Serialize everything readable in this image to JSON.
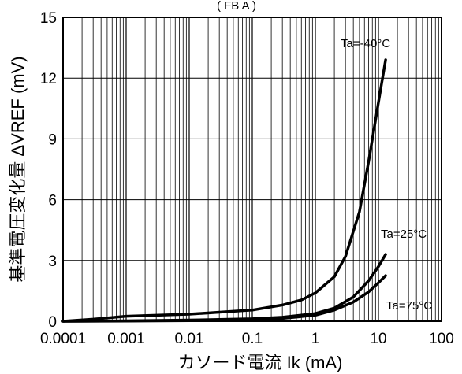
{
  "chart_data": {
    "type": "line",
    "title": "",
    "top_fragment": "( FB A )",
    "xlabel": "カソード電流 Ik (mA)",
    "ylabel": "基準電圧変化量 ΔVREF (mV)",
    "x_scale": "log",
    "xlim": [
      0.0001,
      100
    ],
    "ylim": [
      0,
      15
    ],
    "x_ticks": [
      0.0001,
      0.001,
      0.01,
      0.1,
      1,
      10,
      100
    ],
    "x_tick_labels": [
      "0.0001",
      "0.001",
      "0.01",
      "0.1",
      "1",
      "10",
      "100"
    ],
    "y_ticks": [
      0,
      3,
      6,
      9,
      12,
      15
    ],
    "y_tick_labels": [
      "0",
      "3",
      "6",
      "9",
      "12",
      "15"
    ],
    "grid": true,
    "series": [
      {
        "name": "Ta=-40°C",
        "points": [
          [
            0.0001,
            0
          ],
          [
            0.0003,
            0.1
          ],
          [
            0.001,
            0.25
          ],
          [
            0.01,
            0.35
          ],
          [
            0.1,
            0.55
          ],
          [
            0.3,
            0.8
          ],
          [
            0.6,
            1.05
          ],
          [
            1,
            1.4
          ],
          [
            2,
            2.2
          ],
          [
            3,
            3.2
          ],
          [
            5,
            5.4
          ],
          [
            7,
            7.9
          ],
          [
            10,
            10.8
          ],
          [
            13,
            12.9
          ]
        ]
      },
      {
        "name": "Ta=25°C",
        "points": [
          [
            0.0001,
            0
          ],
          [
            0.001,
            0.02
          ],
          [
            0.01,
            0.06
          ],
          [
            0.1,
            0.12
          ],
          [
            0.3,
            0.2
          ],
          [
            1,
            0.38
          ],
          [
            2,
            0.65
          ],
          [
            4,
            1.2
          ],
          [
            7,
            2.0
          ],
          [
            10,
            2.7
          ],
          [
            13,
            3.3
          ]
        ]
      },
      {
        "name": "Ta=75°C",
        "points": [
          [
            0.0001,
            0
          ],
          [
            0.001,
            0.01
          ],
          [
            0.01,
            0.03
          ],
          [
            0.1,
            0.08
          ],
          [
            0.3,
            0.14
          ],
          [
            1,
            0.3
          ],
          [
            2,
            0.55
          ],
          [
            4,
            0.95
          ],
          [
            7,
            1.45
          ],
          [
            10,
            1.9
          ],
          [
            13,
            2.25
          ]
        ]
      }
    ]
  }
}
